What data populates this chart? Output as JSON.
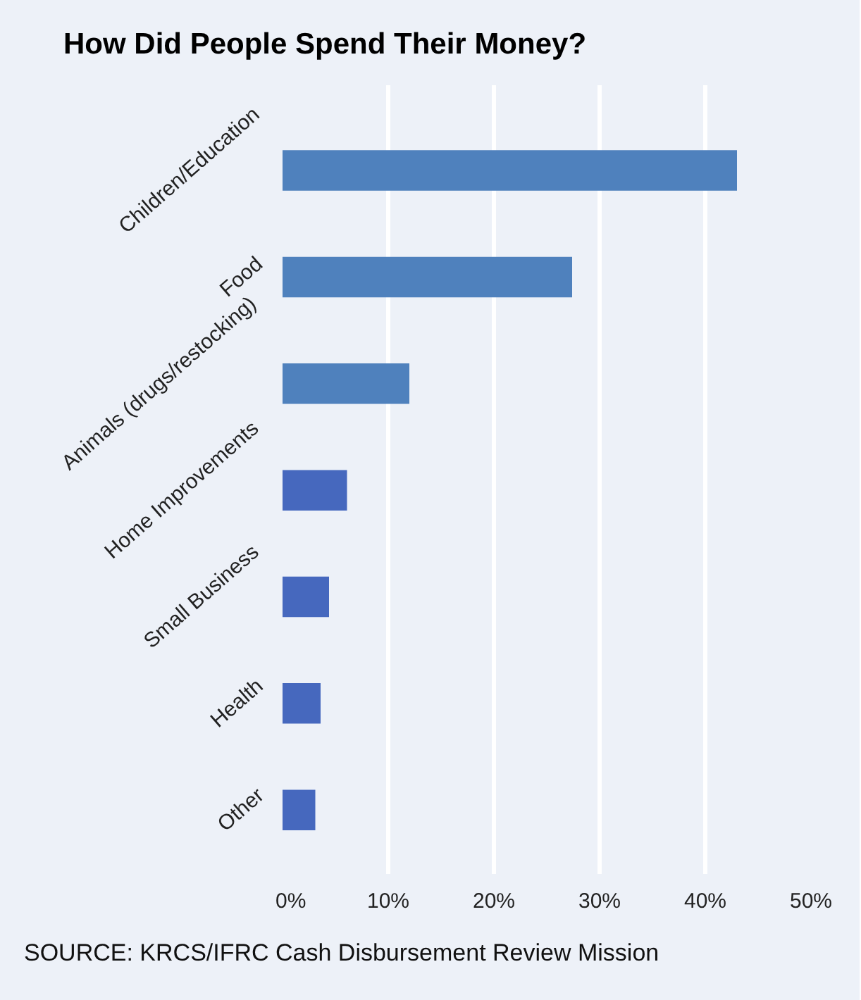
{
  "chart_data": {
    "type": "bar",
    "orientation": "horizontal",
    "title": "How Did People Spend Their Money?",
    "categories": [
      "Children/Education",
      "Food",
      "Animals (drugs/restocking)",
      "Home Improvements",
      "Small Business",
      "Health",
      "Other"
    ],
    "values": [
      43.0,
      27.4,
      12.0,
      6.1,
      4.4,
      3.6,
      3.1
    ],
    "colors": [
      "#4f81bd",
      "#4f81bd",
      "#4f81bd",
      "#4668be",
      "#4668be",
      "#4668be",
      "#4668be"
    ],
    "xlim": [
      0,
      50
    ],
    "xticks": [
      {
        "value": 0,
        "label": "0%"
      },
      {
        "value": 10,
        "label": "10%"
      },
      {
        "value": 20,
        "label": "20%"
      },
      {
        "value": 30,
        "label": "30%"
      },
      {
        "value": 40,
        "label": "40%"
      },
      {
        "value": 50,
        "label": "50%"
      }
    ],
    "grid": "x",
    "annotations": [
      "SOURCE: KRCS/IFRC Cash Disbursement Review Mission"
    ]
  }
}
